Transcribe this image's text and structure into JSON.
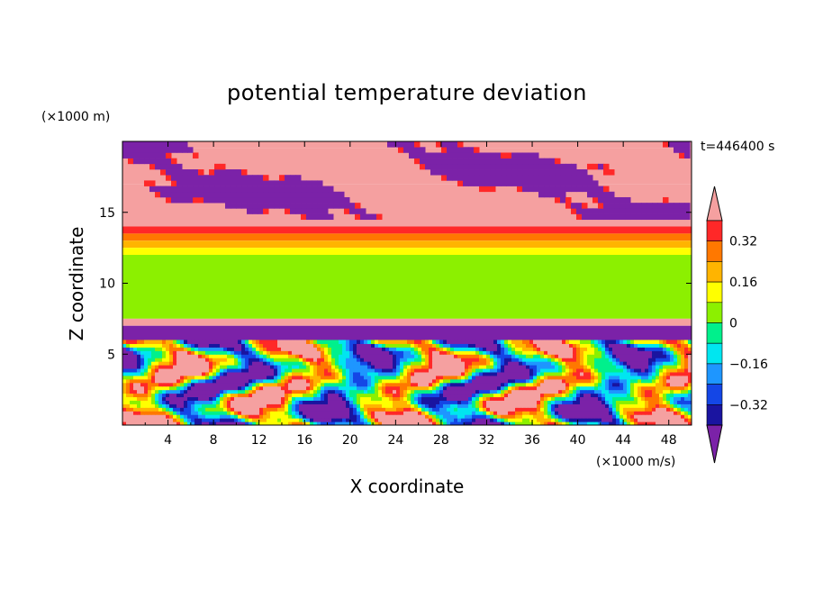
{
  "chart_data": {
    "type": "heatmap",
    "title": "potential temperature deviation",
    "xlabel": "X coordinate",
    "ylabel": "Z coordinate",
    "x_unit": "(×1000 m/s)",
    "y_unit": "(×1000 m)",
    "time_label": "t=446400 s",
    "xlim": [
      0,
      50
    ],
    "ylim": [
      0,
      20
    ],
    "x_ticks": [
      "4",
      "8",
      "12",
      "16",
      "20",
      "24",
      "28",
      "32",
      "36",
      "40",
      "44",
      "48"
    ],
    "y_ticks": [
      "5",
      "10",
      "15"
    ],
    "colorbar": {
      "levels": [
        -0.4,
        -0.32,
        -0.24,
        -0.16,
        -0.08,
        0,
        0.08,
        0.16,
        0.24,
        0.32,
        0.4
      ],
      "tick_labels": [
        "0.32",
        "0.16",
        "0",
        "−0.16",
        "−0.32"
      ],
      "colors": [
        "#7b22a8",
        "#1a14a0",
        "#1446e6",
        "#1e96ff",
        "#00e6f0",
        "#00f08c",
        "#8cf000",
        "#ffff00",
        "#ffb400",
        "#ff7800",
        "#ff2828",
        "#f5a0a0"
      ]
    },
    "bands": [
      {
        "z": [
          19.5,
          20.0
        ],
        "level": 0.45
      },
      {
        "z": [
          17.0,
          19.5
        ],
        "level": 0.45
      },
      {
        "z": [
          14.0,
          17.0
        ],
        "level": 0.45
      },
      {
        "z": [
          13.5,
          14.0
        ],
        "level": 0.35
      },
      {
        "z": [
          13.0,
          13.5
        ],
        "level": 0.28
      },
      {
        "z": [
          12.5,
          13.0
        ],
        "level": 0.2
      },
      {
        "z": [
          12.0,
          12.5
        ],
        "level": 0.12
      },
      {
        "z": [
          7.5,
          12.0
        ],
        "level": 0.04
      },
      {
        "z": [
          7.0,
          7.5
        ],
        "level": 0.45
      },
      {
        "z": [
          6.0,
          7.0
        ],
        "level": -0.45
      },
      {
        "z": [
          0.0,
          6.0
        ],
        "level": 0.0
      }
    ]
  }
}
